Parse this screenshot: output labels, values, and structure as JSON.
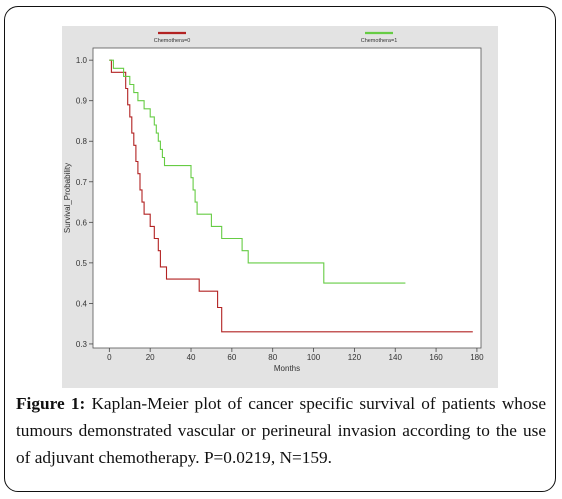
{
  "caption": {
    "label": "Figure 1:",
    "text": "Kaplan-Meier plot of cancer specific survival of patients whose tumours demonstrated vascular or perineural invasion according to the use of adjuvant chemotherapy. P=0.0219, N=159."
  },
  "chart_data": {
    "type": "line",
    "step": true,
    "xlabel": "Months",
    "ylabel": "Survival_Probability",
    "xlim": [
      -8,
      182
    ],
    "ylim": [
      0.29,
      1.03
    ],
    "xticks": [
      0,
      20,
      40,
      60,
      80,
      100,
      120,
      140,
      160,
      180
    ],
    "xtick_labels": [
      "0",
      "20",
      "40",
      "60",
      "80",
      "100",
      "120",
      "140",
      "160",
      "180"
    ],
    "yticks": [
      0.3,
      0.4,
      0.5,
      0.6,
      0.7,
      0.8,
      0.9,
      1.0
    ],
    "ytick_labels": [
      "0.3",
      "0.4",
      "0.5",
      "0.6",
      "0.7",
      "0.8",
      "0.9",
      "1.0"
    ],
    "grid": false,
    "legend_position": "top",
    "series": [
      {
        "name": "Chemothera=0",
        "color": "#b22222",
        "x": [
          0,
          1,
          8,
          9,
          10,
          11,
          12,
          13,
          14,
          15,
          16,
          17,
          20,
          22,
          24,
          25,
          28,
          30,
          38,
          44,
          48,
          53,
          55,
          178
        ],
        "y": [
          1.0,
          0.97,
          0.93,
          0.89,
          0.86,
          0.82,
          0.79,
          0.75,
          0.72,
          0.68,
          0.65,
          0.62,
          0.59,
          0.56,
          0.53,
          0.49,
          0.46,
          0.46,
          0.46,
          0.43,
          0.43,
          0.39,
          0.33,
          0.33
        ]
      },
      {
        "name": "Chemothera=1",
        "color": "#66cc44",
        "x": [
          0,
          2,
          7,
          10,
          12,
          14,
          17,
          20,
          22,
          23,
          24,
          25,
          26,
          27,
          30,
          32,
          40,
          41,
          42,
          43,
          44,
          50,
          55,
          58,
          65,
          68,
          73,
          105,
          145
        ],
        "y": [
          1.0,
          0.98,
          0.96,
          0.94,
          0.92,
          0.9,
          0.88,
          0.86,
          0.84,
          0.82,
          0.8,
          0.78,
          0.76,
          0.74,
          0.74,
          0.74,
          0.71,
          0.68,
          0.65,
          0.62,
          0.62,
          0.59,
          0.56,
          0.56,
          0.53,
          0.5,
          0.5,
          0.45,
          0.45
        ]
      }
    ]
  }
}
